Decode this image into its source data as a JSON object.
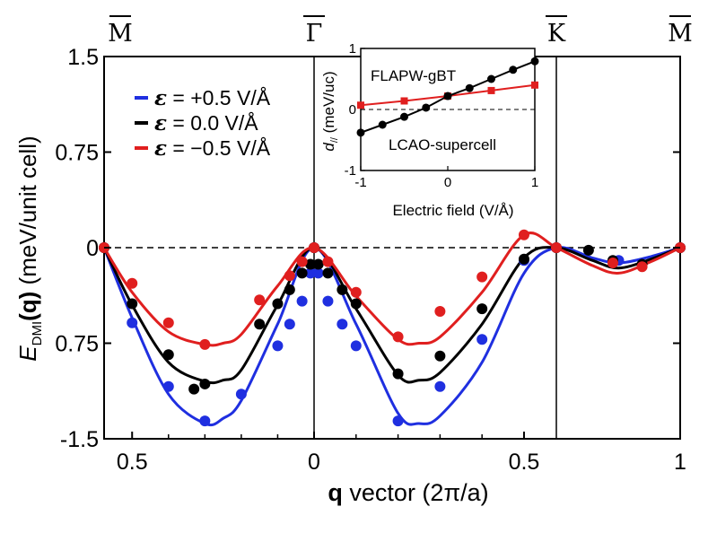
{
  "chart_data": {
    "type": "line",
    "ylabel_main": "E",
    "ylabel_sub": "DMI",
    "ylabel_q": "(q)",
    "ylabel_unit": " (meV/unit cell)",
    "xlabel_q": "q",
    "xlabel_rest": " vector (2π/a)",
    "symmetry_points": [
      "M",
      "Γ",
      "K",
      "M"
    ],
    "y_ticks": [
      "1.5",
      "0.75",
      "0",
      "0.75",
      "-1.5"
    ],
    "x_ticks": [
      "0.5",
      "0",
      "0",
      "0.5",
      "1"
    ],
    "ylim": [
      -1.5,
      1.5
    ],
    "legend": [
      {
        "symbol": "ε",
        "text": " = +0.5 V/Å",
        "color": "#1f2fe0"
      },
      {
        "symbol": "ε",
        "text": " = 0.0 V/Å",
        "color": "#000000"
      },
      {
        "symbol": "ε",
        "text": " = −0.5 V/Å",
        "color": "#e01f1f"
      }
    ],
    "series": [
      {
        "color": "#1f2fe0",
        "points_x": [
          -0.577,
          -0.5,
          -0.4,
          -0.3,
          -0.2,
          -0.1,
          -0.067,
          -0.033,
          -0.01,
          0,
          0.01,
          0.033,
          0.067,
          0.1,
          0.2,
          0.3,
          0.4,
          0.5,
          0.577,
          0.79,
          1.0
        ],
        "points_y": [
          0,
          -0.59,
          -1.09,
          -1.36,
          -1.15,
          -0.77,
          -0.6,
          -0.42,
          -0.2,
          0,
          -0.2,
          -0.42,
          -0.6,
          -0.77,
          -1.36,
          -1.09,
          -0.72,
          -0.1,
          0,
          -0.1,
          0
        ],
        "curve_x": [
          -0.577,
          -0.5,
          -0.4,
          -0.3,
          -0.25,
          -0.2,
          -0.1,
          0,
          0.1,
          0.2,
          0.25,
          0.3,
          0.4,
          0.5,
          0.577,
          0.7,
          0.79,
          0.9,
          1.0
        ],
        "curve_y": [
          0,
          -0.55,
          -1.15,
          -1.38,
          -1.34,
          -1.2,
          -0.6,
          0,
          -0.6,
          -1.3,
          -1.38,
          -1.32,
          -0.9,
          -0.2,
          0,
          -0.08,
          -0.12,
          -0.07,
          0
        ]
      },
      {
        "color": "#000000",
        "points_x": [
          -0.577,
          -0.5,
          -0.4,
          -0.33,
          -0.3,
          -0.15,
          -0.1,
          -0.067,
          -0.033,
          -0.01,
          0,
          0.01,
          0.033,
          0.067,
          0.1,
          0.2,
          0.3,
          0.4,
          0.5,
          0.577,
          0.687,
          0.77,
          0.87,
          1.0
        ],
        "points_y": [
          0,
          -0.44,
          -0.84,
          -1.11,
          -1.07,
          -0.6,
          -0.44,
          -0.33,
          -0.2,
          -0.13,
          0,
          -0.13,
          -0.2,
          -0.33,
          -0.44,
          -0.99,
          -0.85,
          -0.48,
          -0.09,
          0,
          -0.02,
          -0.1,
          -0.13,
          0
        ],
        "curve_x": [
          -0.577,
          -0.5,
          -0.4,
          -0.3,
          -0.25,
          -0.2,
          -0.1,
          0,
          0.1,
          0.2,
          0.25,
          0.3,
          0.4,
          0.5,
          0.577,
          0.7,
          0.79,
          0.9,
          1.0
        ],
        "curve_y": [
          0,
          -0.45,
          -0.9,
          -1.05,
          -1.04,
          -0.96,
          -0.45,
          0,
          -0.48,
          -1.0,
          -1.04,
          -0.98,
          -0.6,
          -0.08,
          0,
          -0.1,
          -0.16,
          -0.09,
          0
        ]
      },
      {
        "color": "#e01f1f",
        "points_x": [
          -0.577,
          -0.5,
          -0.4,
          -0.3,
          -0.15,
          -0.067,
          -0.033,
          0,
          0.033,
          0.1,
          0.2,
          0.3,
          0.4,
          0.5,
          0.577,
          0.77,
          0.87,
          1.0
        ],
        "points_y": [
          0,
          -0.28,
          -0.59,
          -0.76,
          -0.41,
          -0.22,
          -0.11,
          0,
          -0.11,
          -0.35,
          -0.7,
          -0.5,
          -0.23,
          0.1,
          0,
          -0.12,
          -0.15,
          0
        ],
        "curve_x": [
          -0.577,
          -0.5,
          -0.4,
          -0.3,
          -0.25,
          -0.2,
          -0.1,
          0,
          0.1,
          0.2,
          0.25,
          0.3,
          0.4,
          0.5,
          0.577,
          0.7,
          0.79,
          0.9,
          1.0
        ],
        "curve_y": [
          0,
          -0.35,
          -0.66,
          -0.76,
          -0.75,
          -0.68,
          -0.3,
          0,
          -0.38,
          -0.72,
          -0.75,
          -0.7,
          -0.35,
          0.1,
          0,
          -0.14,
          -0.2,
          -0.11,
          0
        ]
      }
    ],
    "inset": {
      "xlabel": "Electric field (V/Å)",
      "ylabel": "d",
      "ylabel_sub": "//",
      "ylabel_unit": " (meV/uc)",
      "x_ticks": [
        "-1",
        "0",
        "1"
      ],
      "y_ticks": [
        "1",
        "0",
        "-1"
      ],
      "xlim": [
        -1,
        1
      ],
      "ylim": [
        -1,
        1
      ],
      "series": [
        {
          "name": "FLAPW-gBT",
          "color": "#e01f1f",
          "marker": "square",
          "x": [
            -1.0,
            -0.5,
            0.0,
            0.5,
            1.0
          ],
          "y": [
            0.07,
            0.14,
            0.22,
            0.31,
            0.4
          ]
        },
        {
          "name": "LCAO-supercell",
          "color": "#000000",
          "marker": "circle",
          "x": [
            -1.0,
            -0.75,
            -0.5,
            -0.25,
            0.0,
            0.25,
            0.5,
            0.75,
            1.0
          ],
          "y": [
            -0.38,
            -0.25,
            -0.12,
            0.03,
            0.22,
            0.35,
            0.5,
            0.65,
            0.79
          ]
        }
      ]
    }
  }
}
